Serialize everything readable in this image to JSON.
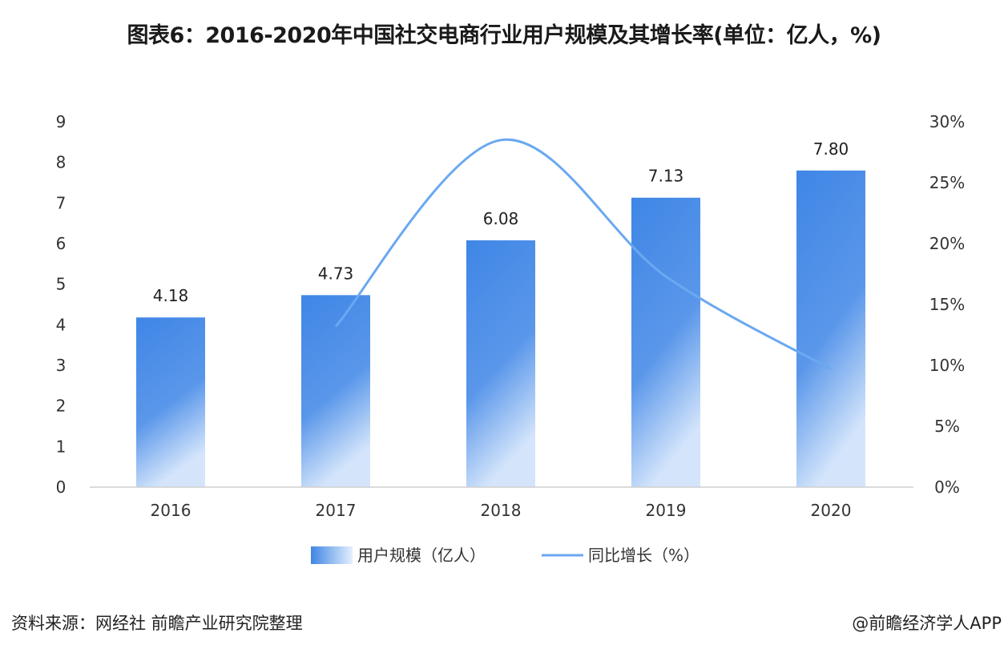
{
  "chart_data": {
    "type": "bar+line",
    "title": "图表6：2016-2020年中国社交电商行业用户规模及其增长率(单位：亿人，%)",
    "categories": [
      "2016",
      "2017",
      "2018",
      "2019",
      "2020"
    ],
    "series": [
      {
        "name": "用户规模（亿人）",
        "type": "bar",
        "axis": "left",
        "values": [
          4.18,
          4.73,
          6.08,
          7.13,
          7.8
        ],
        "labels": [
          "4.18",
          "4.73",
          "6.08",
          "7.13",
          "7.80"
        ],
        "color": "#3f86e6"
      },
      {
        "name": "同比增长（%）",
        "type": "line",
        "axis": "right",
        "values": [
          null,
          13.2,
          28.5,
          17.3,
          9.7
        ],
        "color": "#6aa8f0"
      }
    ],
    "left_axis": {
      "ylim": [
        0,
        9
      ],
      "ticks": [
        "0",
        "1",
        "2",
        "3",
        "4",
        "5",
        "6",
        "7",
        "8",
        "9"
      ]
    },
    "right_axis": {
      "ylim": [
        0,
        30
      ],
      "ticks": [
        "0%",
        "5%",
        "10%",
        "15%",
        "20%",
        "25%",
        "30%"
      ]
    },
    "grid": false,
    "legend": "bottom"
  },
  "footer": {
    "source": "资料来源：网经社 前瞻产业研究院整理",
    "credit": "@前瞻经济学人APP"
  },
  "watermark": "前瞻产业研究院"
}
